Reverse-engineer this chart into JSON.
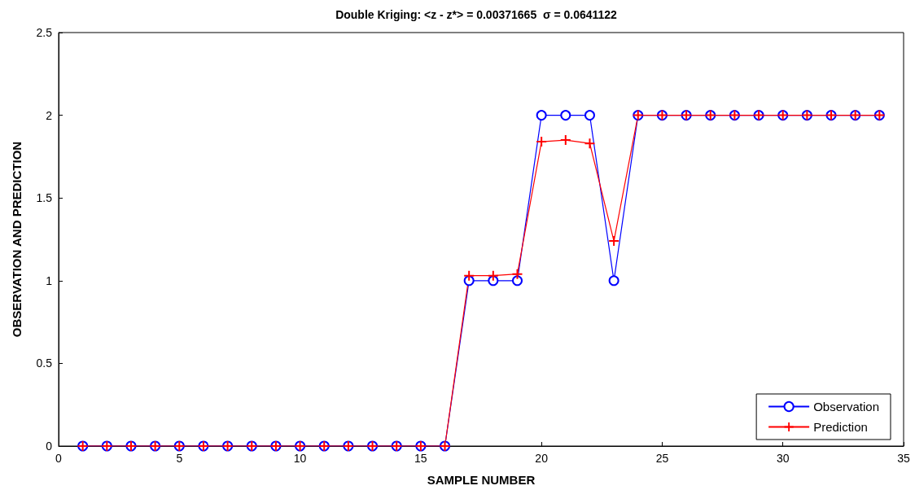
{
  "chart_data": {
    "type": "line",
    "title": "Double Kriging: <z - z*> = 0.00371665  σ = 0.0641122",
    "xlabel": "SAMPLE NUMBER",
    "ylabel": "OBSERVATION AND PREDICTION",
    "x": [
      1,
      2,
      3,
      4,
      5,
      6,
      7,
      8,
      9,
      10,
      11,
      12,
      13,
      14,
      15,
      16,
      17,
      18,
      19,
      20,
      21,
      22,
      23,
      24,
      25,
      26,
      27,
      28,
      29,
      30,
      31,
      32,
      33,
      34
    ],
    "series": [
      {
        "name": "Observation",
        "color": "#0000ff",
        "marker": "circle",
        "values": [
          0,
          0,
          0,
          0,
          0,
          0,
          0,
          0,
          0,
          0,
          0,
          0,
          0,
          0,
          0,
          0,
          1,
          1,
          1,
          2,
          2,
          2,
          1,
          2,
          2,
          2,
          2,
          2,
          2,
          2,
          2,
          2,
          2,
          2
        ]
      },
      {
        "name": "Prediction",
        "color": "#ff0000",
        "marker": "cross",
        "values": [
          0,
          0,
          0,
          0,
          0,
          0,
          0,
          0,
          0,
          0,
          0,
          0,
          0,
          0,
          0,
          0,
          1.03,
          1.03,
          1.04,
          1.84,
          1.85,
          1.83,
          1.24,
          2,
          2,
          2,
          2,
          2,
          2,
          2,
          2,
          2,
          2,
          2
        ]
      }
    ],
    "xlim": [
      0,
      35
    ],
    "xticks": [
      0,
      5,
      10,
      15,
      20,
      25,
      30,
      35
    ],
    "ylim": [
      0,
      2.5
    ],
    "yticks": [
      0,
      0.5,
      1,
      1.5,
      2,
      2.5
    ],
    "grid": false,
    "legend": "bottom right",
    "line_style": "solid"
  }
}
